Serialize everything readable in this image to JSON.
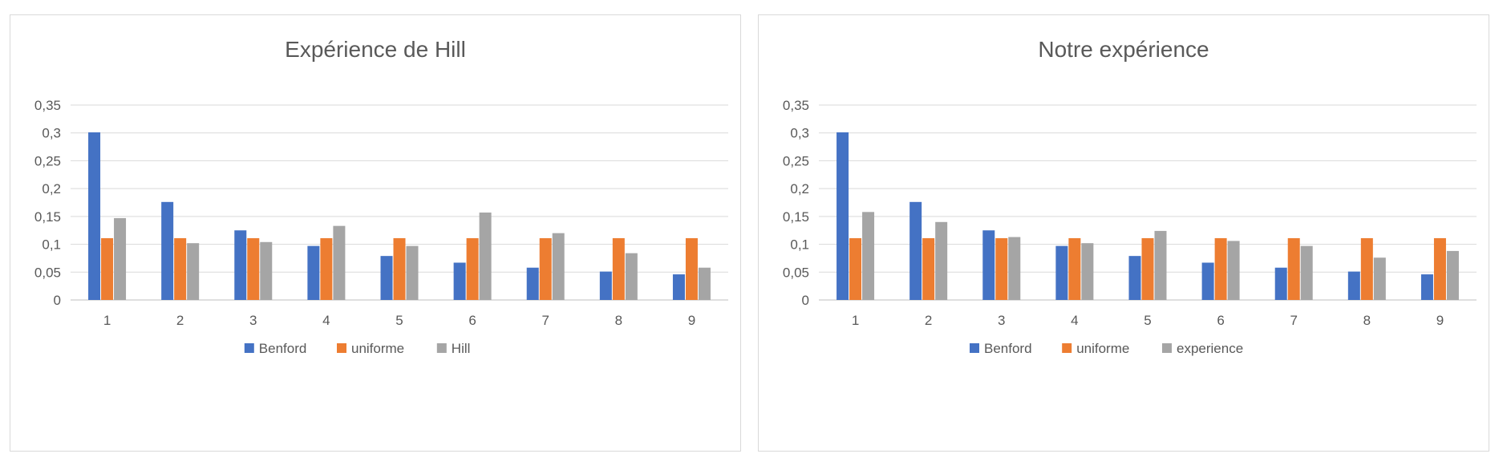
{
  "colors": {
    "benford": "#4472c4",
    "uniforme": "#ed7d31",
    "third": "#a5a5a5"
  },
  "chart_data": [
    {
      "type": "bar",
      "title": "Expérience de Hill",
      "categories": [
        "1",
        "2",
        "3",
        "4",
        "5",
        "6",
        "7",
        "8",
        "9"
      ],
      "ylim": [
        0,
        0.35
      ],
      "yticks": [
        "0",
        "0,05",
        "0,1",
        "0,15",
        "0,2",
        "0,25",
        "0,3",
        "0,35"
      ],
      "grid": true,
      "legend": "bottom",
      "series": [
        {
          "name": "Benford",
          "color": "#4472c4",
          "values": [
            0.301,
            0.176,
            0.125,
            0.097,
            0.079,
            0.067,
            0.058,
            0.051,
            0.046
          ]
        },
        {
          "name": "uniforme",
          "color": "#ed7d31",
          "values": [
            0.111,
            0.111,
            0.111,
            0.111,
            0.111,
            0.111,
            0.111,
            0.111,
            0.111
          ]
        },
        {
          "name": "Hill",
          "color": "#a5a5a5",
          "values": [
            0.147,
            0.102,
            0.104,
            0.133,
            0.097,
            0.157,
            0.12,
            0.084,
            0.058
          ]
        }
      ]
    },
    {
      "type": "bar",
      "title": "Notre expérience",
      "categories": [
        "1",
        "2",
        "3",
        "4",
        "5",
        "6",
        "7",
        "8",
        "9"
      ],
      "ylim": [
        0,
        0.35
      ],
      "yticks": [
        "0",
        "0,05",
        "0,1",
        "0,15",
        "0,2",
        "0,25",
        "0,3",
        "0,35"
      ],
      "grid": true,
      "legend": "bottom",
      "series": [
        {
          "name": "Benford",
          "color": "#4472c4",
          "values": [
            0.301,
            0.176,
            0.125,
            0.097,
            0.079,
            0.067,
            0.058,
            0.051,
            0.046
          ]
        },
        {
          "name": "uniforme",
          "color": "#ed7d31",
          "values": [
            0.111,
            0.111,
            0.111,
            0.111,
            0.111,
            0.111,
            0.111,
            0.111,
            0.111
          ]
        },
        {
          "name": "experience",
          "color": "#a5a5a5",
          "values": [
            0.158,
            0.14,
            0.113,
            0.102,
            0.124,
            0.106,
            0.097,
            0.076,
            0.088
          ]
        }
      ]
    }
  ]
}
